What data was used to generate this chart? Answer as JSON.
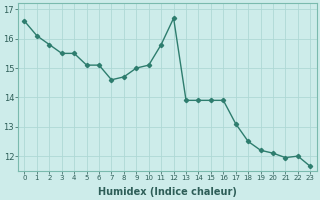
{
  "x": [
    0,
    1,
    2,
    3,
    4,
    5,
    6,
    7,
    8,
    9,
    10,
    11,
    12,
    13,
    14,
    15,
    16,
    17,
    18,
    19,
    20,
    21,
    22,
    23
  ],
  "y": [
    16.6,
    16.1,
    15.8,
    15.5,
    15.5,
    15.1,
    15.1,
    14.6,
    14.7,
    15.0,
    15.1,
    15.8,
    16.7,
    13.9,
    13.9,
    13.9,
    13.9,
    13.1,
    12.5,
    12.2,
    12.1,
    11.95,
    12.0,
    11.65
  ],
  "xlabel": "Humidex (Indice chaleur)",
  "ylim": [
    11.5,
    17.2
  ],
  "yticks": [
    12,
    13,
    14,
    15,
    16,
    17
  ],
  "xticks": [
    0,
    1,
    2,
    3,
    4,
    5,
    6,
    7,
    8,
    9,
    10,
    11,
    12,
    13,
    14,
    15,
    16,
    17,
    18,
    19,
    20,
    21,
    22,
    23
  ],
  "line_color": "#2e7d6e",
  "bg_color": "#cdecea",
  "grid_color": "#aed8d5",
  "marker": "D",
  "marker_size": 2.2,
  "line_width": 1.0
}
